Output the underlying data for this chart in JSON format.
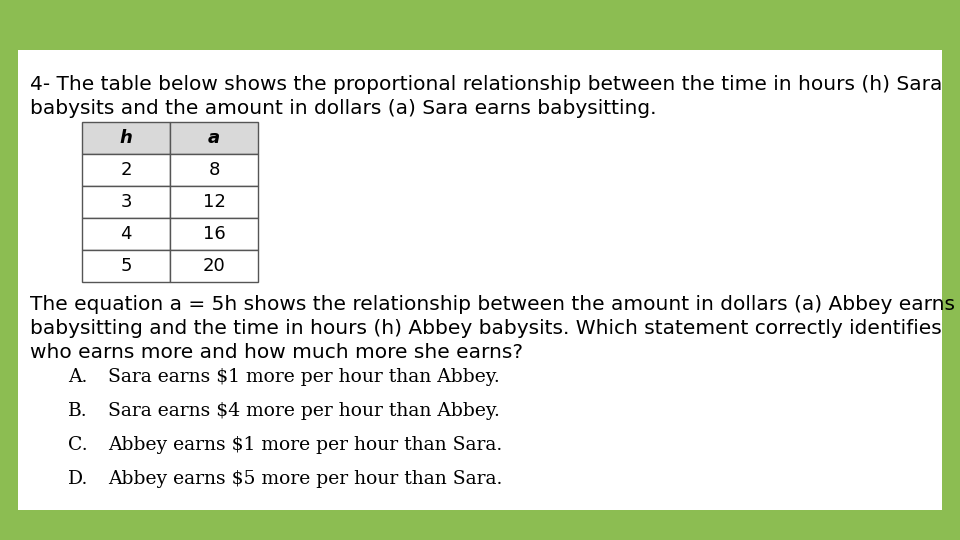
{
  "background_color": "#8cbd52",
  "card_color": "#ffffff",
  "card_border": "#cccccc",
  "title_line1": "4- The table below shows the proportional relationship between the time in hours (h) Sara",
  "title_line2": "babysits and the amount in dollars (a) Sara earns babysitting.",
  "table_headers": [
    "h",
    "a"
  ],
  "table_rows": [
    [
      "2",
      "8"
    ],
    [
      "3",
      "12"
    ],
    [
      "4",
      "16"
    ],
    [
      "5",
      "20"
    ]
  ],
  "table_header_bg": "#d9d9d9",
  "table_row_bg": "#ffffff",
  "table_border": "#555555",
  "para_line1": "The equation a = 5h shows the relationship between the amount in dollars (a) Abbey earns",
  "para_line2": "babysitting and the time in hours (h) Abbey babysits. Which statement correctly identifies",
  "para_line3": "who earns more and how much more she earns?",
  "choice_letter_font": 13,
  "choice_text_font": 13,
  "choices_letters": [
    "A.",
    "B.",
    "C.",
    "D."
  ],
  "choices_texts": [
    "Sara earns $1 more per hour than Abbey.",
    "Sara earns $4 more per hour than Abbey.",
    "Abbey earns $1 more per hour than Sara.",
    "Abbey earns $5 more per hour than Sara."
  ],
  "title_fontsize": 14.5,
  "body_fontsize": 14.5,
  "table_fontsize": 13,
  "choice_fontsize": 13.5
}
